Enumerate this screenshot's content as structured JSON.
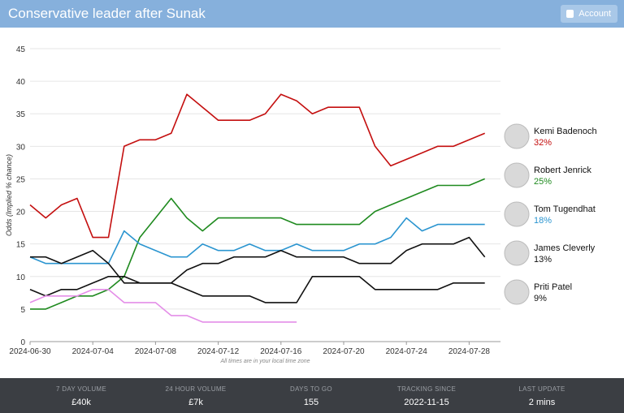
{
  "header": {
    "title": "Conservative leader after Sunak",
    "account": "Account"
  },
  "chart_data": {
    "type": "line",
    "y_label": "Odds (Implied % chance)",
    "note": "All times are in your local time zone",
    "x": [
      "2024-06-30",
      "2024-07-01",
      "2024-07-02",
      "2024-07-03",
      "2024-07-04",
      "2024-07-05",
      "2024-07-06",
      "2024-07-07",
      "2024-07-08",
      "2024-07-09",
      "2024-07-10",
      "2024-07-11",
      "2024-07-12",
      "2024-07-13",
      "2024-07-14",
      "2024-07-15",
      "2024-07-16",
      "2024-07-17",
      "2024-07-18",
      "2024-07-19",
      "2024-07-20",
      "2024-07-21",
      "2024-07-22",
      "2024-07-23",
      "2024-07-24",
      "2024-07-25",
      "2024-07-26",
      "2024-07-27",
      "2024-07-28",
      "2024-07-29"
    ],
    "xlim": [
      "2024-06-30",
      "2024-07-30"
    ],
    "xticks": [
      "2024-06-30",
      "2024-07-04",
      "2024-07-08",
      "2024-07-12",
      "2024-07-16",
      "2024-07-20",
      "2024-07-24",
      "2024-07-28"
    ],
    "ylim": [
      0,
      45
    ],
    "yticks": [
      0,
      5,
      10,
      15,
      20,
      25,
      30,
      35,
      40,
      45
    ],
    "grid": true,
    "series": [
      {
        "name": "Kemi Badenoch",
        "current": "32%",
        "color": "#c40f0f",
        "values": [
          21,
          19,
          21,
          22,
          16,
          16,
          30,
          31,
          31,
          32,
          38,
          36,
          34,
          34,
          34,
          35,
          38,
          37,
          35,
          36,
          36,
          36,
          30,
          27,
          28,
          29,
          30,
          30,
          31,
          32
        ]
      },
      {
        "name": "Robert Jenrick",
        "current": "25%",
        "color": "#1f8a1f",
        "values": [
          5,
          5,
          6,
          7,
          7,
          8,
          10,
          16,
          19,
          22,
          19,
          17,
          19,
          19,
          19,
          19,
          19,
          18,
          18,
          18,
          18,
          18,
          20,
          21,
          22,
          23,
          24,
          24,
          24,
          25
        ]
      },
      {
        "name": "Tom Tugendhat",
        "current": "18%",
        "color": "#2b95d0",
        "values": [
          13,
          12,
          12,
          12,
          12,
          12,
          17,
          15,
          14,
          13,
          13,
          15,
          14,
          14,
          15,
          14,
          14,
          15,
          14,
          14,
          14,
          15,
          15,
          16,
          19,
          17,
          18,
          18,
          18,
          18
        ]
      },
      {
        "name": "James Cleverly",
        "current": "13%",
        "color": "#111111",
        "values": [
          13,
          13,
          12,
          13,
          14,
          12,
          9,
          9,
          9,
          9,
          11,
          12,
          12,
          13,
          13,
          13,
          14,
          13,
          13,
          13,
          13,
          12,
          12,
          12,
          14,
          15,
          15,
          15,
          16,
          13
        ]
      },
      {
        "name": "Priti Patel",
        "current": "9%",
        "color": "#111111",
        "values": [
          8,
          7,
          8,
          8,
          9,
          10,
          10,
          9,
          9,
          9,
          8,
          7,
          7,
          7,
          7,
          6,
          6,
          6,
          10,
          10,
          10,
          10,
          8,
          8,
          8,
          8,
          8,
          9,
          9,
          9
        ]
      },
      {
        "color": "#e48ee8",
        "values": [
          6,
          7,
          7,
          7,
          8,
          8,
          6,
          6,
          6,
          4,
          4,
          3,
          3,
          3,
          3,
          3,
          3,
          3,
          null,
          null,
          null,
          null,
          null,
          null,
          null,
          null,
          null,
          null,
          null,
          null
        ]
      }
    ]
  },
  "stats": [
    {
      "label": "7 DAY VOLUME",
      "value": "£40k"
    },
    {
      "label": "24 HOUR VOLUME",
      "value": "£7k"
    },
    {
      "label": "DAYS TO GO",
      "value": "155"
    },
    {
      "label": "TRACKING SINCE",
      "value": "2022-11-15"
    },
    {
      "label": "LAST UPDATE",
      "value": "2 mins"
    }
  ]
}
